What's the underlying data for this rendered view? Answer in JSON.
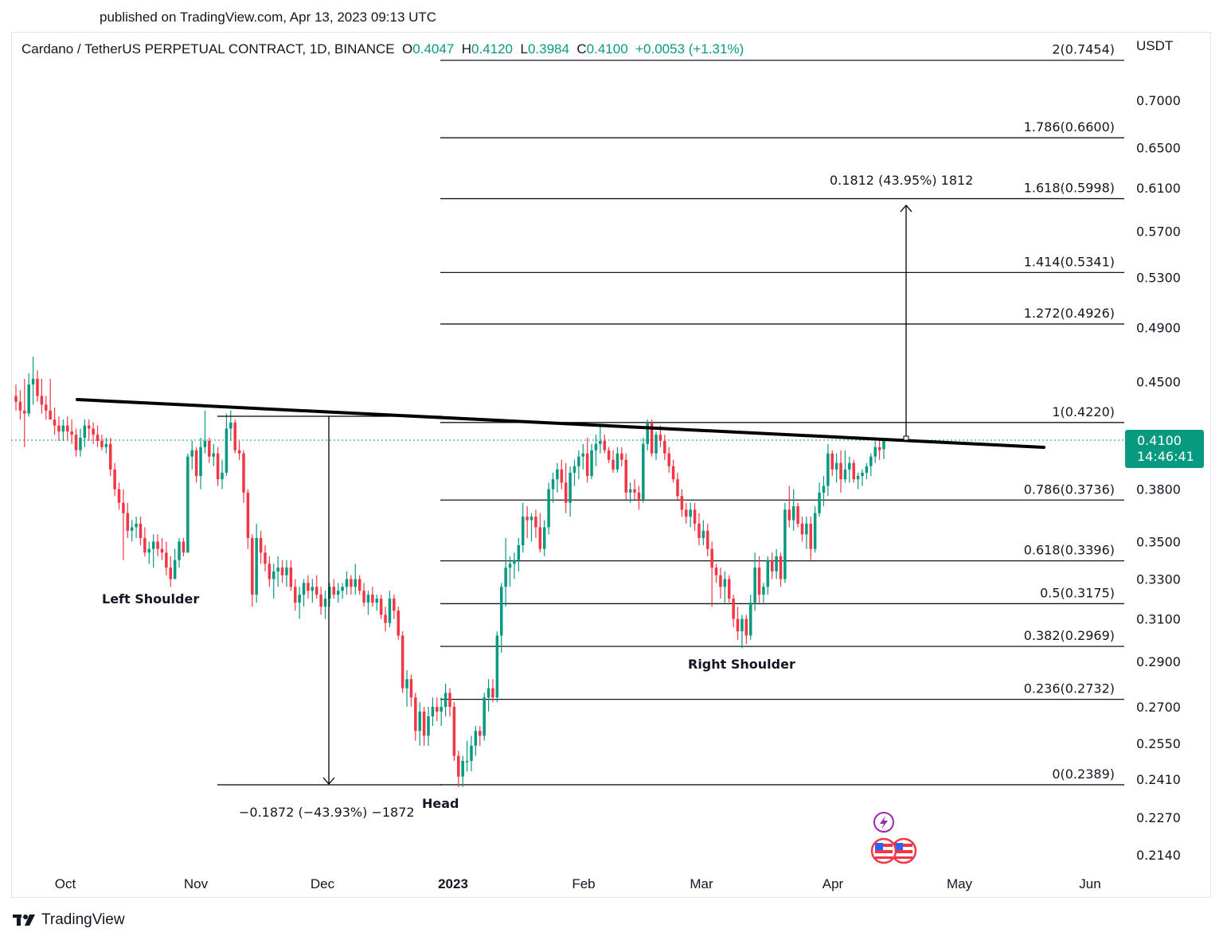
{
  "header": {
    "published": "published on TradingView.com, Apr 13, 2023 09:13 UTC"
  },
  "legend": {
    "symbol": "Cardano / TetherUS PERPETUAL CONTRACT, 1D, BINANCE",
    "o_label": "O",
    "o": "0.4047",
    "h_label": "H",
    "h": "0.4120",
    "l_label": "L",
    "l": "0.3984",
    "c_label": "C",
    "c": "0.4100",
    "change": "+0.0053 (+1.31%)"
  },
  "price_axis": {
    "currency": "USDT",
    "last_price": "0.4100",
    "countdown": "14:46:41"
  },
  "footer": {
    "brand": "TradingView"
  },
  "colors": {
    "up": "#089981",
    "down": "#f23645",
    "line": "#131722",
    "price_tag": "#089981"
  },
  "chart_data": {
    "type": "candlestick",
    "title": "Cardano / TetherUS PERPETUAL CONTRACT, 1D, BINANCE",
    "ylabel": "USDT",
    "ylim": [
      0.205,
      0.76
    ],
    "scale": "log",
    "grid": false,
    "y_ticks": [
      "0.7000",
      "0.6500",
      "0.6100",
      "0.5700",
      "0.5300",
      "0.4900",
      "0.4500",
      "0.3800",
      "0.3500",
      "0.3300",
      "0.3100",
      "0.2900",
      "0.2700",
      "0.2550",
      "0.2410",
      "0.2270",
      "0.2140"
    ],
    "x_ticks": [
      "Oct",
      "Nov",
      "Dec",
      "2023",
      "Feb",
      "Mar",
      "Apr",
      "May",
      "Jun"
    ],
    "fib_levels": [
      {
        "ratio": "2",
        "price": 0.7454,
        "label": "2(0.7454)"
      },
      {
        "ratio": "1.786",
        "price": 0.66,
        "label": "1.786(0.6600)"
      },
      {
        "ratio": "1.618",
        "price": 0.5998,
        "label": "1.618(0.5998)"
      },
      {
        "ratio": "1.414",
        "price": 0.5341,
        "label": "1.414(0.5341)"
      },
      {
        "ratio": "1.272",
        "price": 0.4926,
        "label": "1.272(0.4926)"
      },
      {
        "ratio": "1",
        "price": 0.422,
        "label": "1(0.4220)"
      },
      {
        "ratio": "0.786",
        "price": 0.3736,
        "label": "0.786(0.3736)"
      },
      {
        "ratio": "0.618",
        "price": 0.3396,
        "label": "0.618(0.3396)"
      },
      {
        "ratio": "0.5",
        "price": 0.3175,
        "label": "0.5(0.3175)"
      },
      {
        "ratio": "0.382",
        "price": 0.2969,
        "label": "0.382(0.2969)"
      },
      {
        "ratio": "0.236",
        "price": 0.2732,
        "label": "0.236(0.2732)"
      },
      {
        "ratio": "0",
        "price": 0.2389,
        "label": "0(0.2389)"
      }
    ],
    "annotations": {
      "left_shoulder": "Left Shoulder",
      "head": "Head",
      "right_shoulder": "Right Shoulder",
      "measure_down": "−0.1872 (−43.93%) −1872",
      "measure_up": "0.1812 (43.95%) 1812"
    },
    "neckline": {
      "start_price": 0.434,
      "end_price": 0.404,
      "start_date": "2022-09-30",
      "end_date": "2023-05-20"
    },
    "last": {
      "open": 0.4047,
      "high": 0.412,
      "low": 0.3984,
      "close": 0.41,
      "change": 0.0053,
      "change_pct": 1.31
    },
    "candles_approx": [
      [
        0.44,
        0.448,
        0.43,
        0.436
      ],
      [
        0.436,
        0.444,
        0.424,
        0.43
      ],
      [
        0.43,
        0.452,
        0.406,
        0.428
      ],
      [
        0.428,
        0.456,
        0.426,
        0.448
      ],
      [
        0.448,
        0.468,
        0.434,
        0.452
      ],
      [
        0.452,
        0.458,
        0.436,
        0.44
      ],
      [
        0.44,
        0.452,
        0.428,
        0.434
      ],
      [
        0.434,
        0.44,
        0.424,
        0.43
      ],
      [
        0.43,
        0.452,
        0.424,
        0.424
      ],
      [
        0.424,
        0.432,
        0.414,
        0.42
      ],
      [
        0.42,
        0.426,
        0.41,
        0.416
      ],
      [
        0.416,
        0.424,
        0.41,
        0.42
      ],
      [
        0.42,
        0.426,
        0.41,
        0.416
      ],
      [
        0.416,
        0.424,
        0.408,
        0.414
      ],
      [
        0.414,
        0.418,
        0.4,
        0.404
      ],
      [
        0.404,
        0.418,
        0.4,
        0.412
      ],
      [
        0.412,
        0.424,
        0.406,
        0.42
      ],
      [
        0.42,
        0.424,
        0.41,
        0.418
      ],
      [
        0.418,
        0.422,
        0.408,
        0.414
      ],
      [
        0.414,
        0.42,
        0.406,
        0.41
      ],
      [
        0.41,
        0.414,
        0.404,
        0.406
      ],
      [
        0.406,
        0.412,
        0.402,
        0.408
      ],
      [
        0.408,
        0.412,
        0.388,
        0.392
      ],
      [
        0.392,
        0.396,
        0.376,
        0.38
      ],
      [
        0.38,
        0.384,
        0.368,
        0.372
      ],
      [
        0.372,
        0.38,
        0.34,
        0.366
      ],
      [
        0.366,
        0.372,
        0.352,
        0.356
      ],
      [
        0.356,
        0.362,
        0.35,
        0.358
      ],
      [
        0.358,
        0.364,
        0.352,
        0.36
      ],
      [
        0.36,
        0.364,
        0.348,
        0.352
      ],
      [
        0.352,
        0.358,
        0.342,
        0.344
      ],
      [
        0.344,
        0.35,
        0.338,
        0.346
      ],
      [
        0.346,
        0.354,
        0.336,
        0.35
      ],
      [
        0.35,
        0.354,
        0.342,
        0.346
      ],
      [
        0.346,
        0.352,
        0.34,
        0.344
      ],
      [
        0.344,
        0.35,
        0.332,
        0.336
      ],
      [
        0.336,
        0.342,
        0.326,
        0.33
      ],
      [
        0.33,
        0.346,
        0.33,
        0.34
      ],
      [
        0.34,
        0.352,
        0.336,
        0.35
      ],
      [
        0.35,
        0.352,
        0.342,
        0.344
      ],
      [
        0.344,
        0.402,
        0.344,
        0.4
      ],
      [
        0.4,
        0.41,
        0.392,
        0.404
      ],
      [
        0.404,
        0.406,
        0.384,
        0.388
      ],
      [
        0.388,
        0.412,
        0.38,
        0.406
      ],
      [
        0.406,
        0.43,
        0.402,
        0.41
      ],
      [
        0.41,
        0.412,
        0.396,
        0.4
      ],
      [
        0.4,
        0.408,
        0.394,
        0.402
      ],
      [
        0.402,
        0.406,
        0.382,
        0.386
      ],
      [
        0.386,
        0.398,
        0.38,
        0.39
      ],
      [
        0.39,
        0.428,
        0.388,
        0.418
      ],
      [
        0.418,
        0.43,
        0.41,
        0.422
      ],
      [
        0.422,
        0.424,
        0.402,
        0.404
      ],
      [
        0.404,
        0.41,
        0.398,
        0.402
      ],
      [
        0.402,
        0.404,
        0.372,
        0.378
      ],
      [
        0.378,
        0.38,
        0.346,
        0.352
      ],
      [
        0.352,
        0.354,
        0.316,
        0.322
      ],
      [
        0.322,
        0.36,
        0.318,
        0.352
      ],
      [
        0.352,
        0.356,
        0.338,
        0.344
      ],
      [
        0.344,
        0.348,
        0.334,
        0.338
      ],
      [
        0.338,
        0.342,
        0.326,
        0.33
      ],
      [
        0.33,
        0.338,
        0.32,
        0.334
      ],
      [
        0.334,
        0.342,
        0.326,
        0.336
      ],
      [
        0.336,
        0.34,
        0.328,
        0.332
      ],
      [
        0.332,
        0.34,
        0.326,
        0.336
      ],
      [
        0.336,
        0.34,
        0.324,
        0.326
      ],
      [
        0.326,
        0.33,
        0.314,
        0.318
      ],
      [
        0.318,
        0.326,
        0.31,
        0.322
      ],
      [
        0.322,
        0.33,
        0.316,
        0.328
      ],
      [
        0.328,
        0.332,
        0.32,
        0.324
      ],
      [
        0.324,
        0.33,
        0.318,
        0.326
      ],
      [
        0.326,
        0.332,
        0.32,
        0.322
      ],
      [
        0.322,
        0.326,
        0.312,
        0.316
      ],
      [
        0.316,
        0.324,
        0.31,
        0.32
      ],
      [
        0.32,
        0.328,
        0.316,
        0.326
      ],
      [
        0.326,
        0.33,
        0.32,
        0.322
      ],
      [
        0.322,
        0.328,
        0.318,
        0.324
      ],
      [
        0.324,
        0.328,
        0.32,
        0.326
      ],
      [
        0.326,
        0.334,
        0.322,
        0.33
      ],
      [
        0.33,
        0.332,
        0.322,
        0.326
      ],
      [
        0.326,
        0.338,
        0.322,
        0.33
      ],
      [
        0.33,
        0.332,
        0.322,
        0.324
      ],
      [
        0.324,
        0.328,
        0.316,
        0.318
      ],
      [
        0.318,
        0.324,
        0.312,
        0.322
      ],
      [
        0.322,
        0.326,
        0.316,
        0.318
      ],
      [
        0.318,
        0.322,
        0.314,
        0.32
      ],
      [
        0.32,
        0.322,
        0.31,
        0.312
      ],
      [
        0.312,
        0.316,
        0.304,
        0.308
      ],
      [
        0.308,
        0.324,
        0.306,
        0.32
      ],
      [
        0.32,
        0.322,
        0.31,
        0.314
      ],
      [
        0.314,
        0.316,
        0.3,
        0.302
      ],
      [
        0.302,
        0.304,
        0.276,
        0.278
      ],
      [
        0.278,
        0.286,
        0.27,
        0.282
      ],
      [
        0.282,
        0.284,
        0.27,
        0.274
      ],
      [
        0.274,
        0.276,
        0.256,
        0.26
      ],
      [
        0.26,
        0.272,
        0.254,
        0.268
      ],
      [
        0.268,
        0.27,
        0.254,
        0.258
      ],
      [
        0.258,
        0.27,
        0.254,
        0.266
      ],
      [
        0.266,
        0.274,
        0.262,
        0.27
      ],
      [
        0.27,
        0.274,
        0.264,
        0.268
      ],
      [
        0.268,
        0.274,
        0.262,
        0.27
      ],
      [
        0.27,
        0.28,
        0.266,
        0.276
      ],
      [
        0.276,
        0.278,
        0.266,
        0.27
      ],
      [
        0.27,
        0.272,
        0.248,
        0.25
      ],
      [
        0.25,
        0.252,
        0.238,
        0.242
      ],
      [
        0.242,
        0.25,
        0.238,
        0.248
      ],
      [
        0.248,
        0.256,
        0.244,
        0.248
      ],
      [
        0.248,
        0.258,
        0.244,
        0.254
      ],
      [
        0.254,
        0.262,
        0.25,
        0.26
      ],
      [
        0.26,
        0.262,
        0.254,
        0.258
      ],
      [
        0.258,
        0.276,
        0.256,
        0.274
      ],
      [
        0.274,
        0.282,
        0.268,
        0.278
      ],
      [
        0.278,
        0.282,
        0.272,
        0.274
      ],
      [
        0.274,
        0.304,
        0.272,
        0.302
      ],
      [
        0.302,
        0.328,
        0.294,
        0.326
      ],
      [
        0.326,
        0.352,
        0.316,
        0.336
      ],
      [
        0.336,
        0.342,
        0.326,
        0.338
      ],
      [
        0.338,
        0.344,
        0.33,
        0.34
      ],
      [
        0.34,
        0.352,
        0.334,
        0.348
      ],
      [
        0.348,
        0.372,
        0.344,
        0.364
      ],
      [
        0.364,
        0.37,
        0.352,
        0.362
      ],
      [
        0.362,
        0.366,
        0.35,
        0.364
      ],
      [
        0.364,
        0.368,
        0.352,
        0.358
      ],
      [
        0.358,
        0.366,
        0.344,
        0.346
      ],
      [
        0.346,
        0.362,
        0.342,
        0.358
      ],
      [
        0.358,
        0.384,
        0.354,
        0.38
      ],
      [
        0.38,
        0.39,
        0.372,
        0.386
      ],
      [
        0.386,
        0.396,
        0.378,
        0.392
      ],
      [
        0.392,
        0.398,
        0.38,
        0.384
      ],
      [
        0.384,
        0.396,
        0.366,
        0.372
      ],
      [
        0.372,
        0.394,
        0.364,
        0.39
      ],
      [
        0.39,
        0.398,
        0.382,
        0.394
      ],
      [
        0.394,
        0.404,
        0.386,
        0.4
      ],
      [
        0.4,
        0.408,
        0.392,
        0.402
      ],
      [
        0.402,
        0.412,
        0.384,
        0.388
      ],
      [
        0.388,
        0.408,
        0.386,
        0.404
      ],
      [
        0.404,
        0.414,
        0.394,
        0.408
      ],
      [
        0.408,
        0.42,
        0.402,
        0.41
      ],
      [
        0.41,
        0.414,
        0.402,
        0.404
      ],
      [
        0.404,
        0.406,
        0.396,
        0.398
      ],
      [
        0.398,
        0.404,
        0.39,
        0.392
      ],
      [
        0.392,
        0.406,
        0.39,
        0.402
      ],
      [
        0.402,
        0.406,
        0.394,
        0.398
      ],
      [
        0.398,
        0.402,
        0.374,
        0.378
      ],
      [
        0.378,
        0.384,
        0.372,
        0.38
      ],
      [
        0.38,
        0.386,
        0.374,
        0.378
      ],
      [
        0.378,
        0.382,
        0.368,
        0.374
      ],
      [
        0.374,
        0.412,
        0.372,
        0.408
      ],
      [
        0.408,
        0.424,
        0.404,
        0.422
      ],
      [
        0.422,
        0.424,
        0.4,
        0.402
      ],
      [
        0.402,
        0.416,
        0.398,
        0.414
      ],
      [
        0.414,
        0.42,
        0.406,
        0.41
      ],
      [
        0.41,
        0.414,
        0.398,
        0.402
      ],
      [
        0.402,
        0.406,
        0.39,
        0.394
      ],
      [
        0.394,
        0.398,
        0.384,
        0.386
      ],
      [
        0.386,
        0.39,
        0.374,
        0.376
      ],
      [
        0.376,
        0.38,
        0.364,
        0.368
      ],
      [
        0.368,
        0.372,
        0.36,
        0.364
      ],
      [
        0.364,
        0.372,
        0.358,
        0.368
      ],
      [
        0.368,
        0.372,
        0.356,
        0.36
      ],
      [
        0.36,
        0.366,
        0.348,
        0.352
      ],
      [
        0.352,
        0.362,
        0.348,
        0.356
      ],
      [
        0.356,
        0.36,
        0.342,
        0.346
      ],
      [
        0.346,
        0.35,
        0.316,
        0.336
      ],
      [
        0.336,
        0.338,
        0.328,
        0.332
      ],
      [
        0.332,
        0.336,
        0.32,
        0.326
      ],
      [
        0.326,
        0.334,
        0.318,
        0.33
      ],
      [
        0.33,
        0.332,
        0.318,
        0.32
      ],
      [
        0.32,
        0.322,
        0.306,
        0.31
      ],
      [
        0.31,
        0.316,
        0.3,
        0.304
      ],
      [
        0.304,
        0.312,
        0.296,
        0.31
      ],
      [
        0.31,
        0.312,
        0.298,
        0.302
      ],
      [
        0.302,
        0.322,
        0.3,
        0.318
      ],
      [
        0.318,
        0.344,
        0.314,
        0.336
      ],
      [
        0.336,
        0.342,
        0.318,
        0.322
      ],
      [
        0.322,
        0.328,
        0.318,
        0.326
      ],
      [
        0.326,
        0.342,
        0.322,
        0.34
      ],
      [
        0.34,
        0.344,
        0.33,
        0.334
      ],
      [
        0.334,
        0.346,
        0.33,
        0.342
      ],
      [
        0.342,
        0.344,
        0.326,
        0.33
      ],
      [
        0.33,
        0.372,
        0.328,
        0.368
      ],
      [
        0.368,
        0.382,
        0.358,
        0.362
      ],
      [
        0.362,
        0.38,
        0.356,
        0.37
      ],
      [
        0.37,
        0.372,
        0.358,
        0.36
      ],
      [
        0.36,
        0.364,
        0.35,
        0.354
      ],
      [
        0.354,
        0.364,
        0.346,
        0.36
      ],
      [
        0.36,
        0.364,
        0.34,
        0.346
      ],
      [
        0.346,
        0.37,
        0.344,
        0.366
      ],
      [
        0.366,
        0.384,
        0.364,
        0.378
      ],
      [
        0.378,
        0.388,
        0.37,
        0.382
      ],
      [
        0.382,
        0.408,
        0.376,
        0.402
      ],
      [
        0.402,
        0.404,
        0.388,
        0.392
      ],
      [
        0.392,
        0.402,
        0.384,
        0.396
      ],
      [
        0.396,
        0.404,
        0.378,
        0.386
      ],
      [
        0.386,
        0.404,
        0.384,
        0.392
      ],
      [
        0.392,
        0.4,
        0.384,
        0.396
      ],
      [
        0.396,
        0.398,
        0.384,
        0.386
      ],
      [
        0.386,
        0.39,
        0.38,
        0.388
      ],
      [
        0.388,
        0.392,
        0.382,
        0.39
      ],
      [
        0.39,
        0.396,
        0.386,
        0.394
      ],
      [
        0.394,
        0.402,
        0.388,
        0.4
      ],
      [
        0.4,
        0.41,
        0.396,
        0.406
      ],
      [
        0.406,
        0.412,
        0.398,
        0.404
      ],
      [
        0.4047,
        0.412,
        0.3984,
        0.41
      ]
    ]
  }
}
